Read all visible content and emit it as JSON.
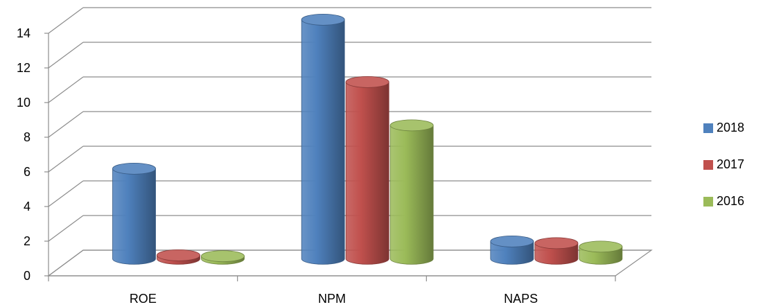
{
  "chart_data": {
    "type": "bar",
    "categories": [
      "ROE",
      "NPM",
      "NAPS"
    ],
    "series": [
      {
        "name": "2018",
        "color": "#4F81BD",
        "values": [
          5.2,
          13.8,
          1.0
        ]
      },
      {
        "name": "2017",
        "color": "#C0504D",
        "values": [
          0.2,
          10.2,
          0.9
        ]
      },
      {
        "name": "2016",
        "color": "#9BBB59",
        "values": [
          0.15,
          7.7,
          0.7
        ]
      }
    ],
    "ylim": [
      0,
      14
    ],
    "yticks": [
      0,
      2,
      4,
      6,
      8,
      10,
      12,
      14
    ],
    "grid": true,
    "legend_position": "right",
    "style": "3d-cylinder"
  }
}
